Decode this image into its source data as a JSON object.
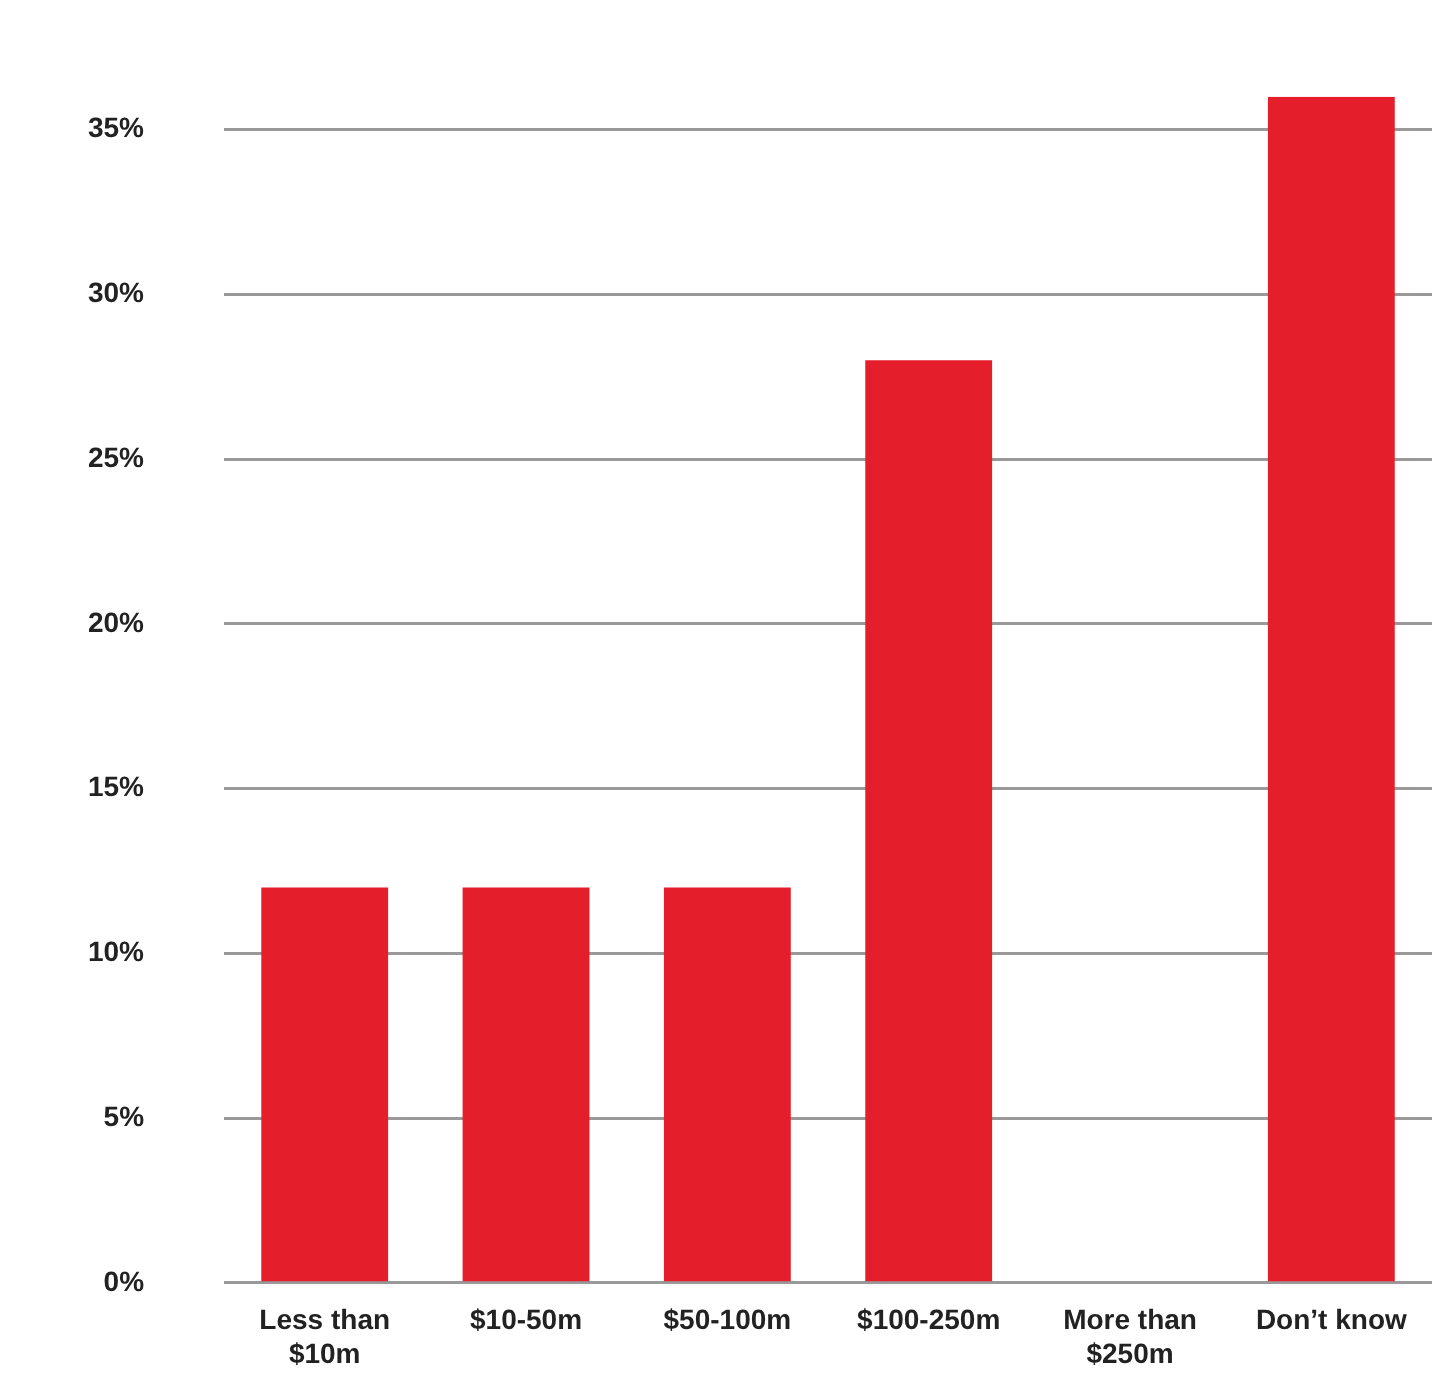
{
  "chart_data": {
    "type": "bar",
    "categories": [
      "Less than $10m",
      "$10-50m",
      "$50-100m",
      "$100-250m",
      "More than $250m",
      "Don’t know"
    ],
    "values": [
      12,
      12,
      12,
      28,
      0,
      36
    ],
    "color": "#e41e2b",
    "ylim": [
      0,
      36
    ],
    "yticks": [
      {
        "value": 0,
        "label": "0%"
      },
      {
        "value": 5,
        "label": "5%"
      },
      {
        "value": 10,
        "label": "10%"
      },
      {
        "value": 15,
        "label": "15%"
      },
      {
        "value": 20,
        "label": "20%"
      },
      {
        "value": 25,
        "label": "25%"
      },
      {
        "value": 30,
        "label": "30%"
      },
      {
        "value": 35,
        "label": "35%"
      }
    ],
    "grid": "y",
    "legend": false
  }
}
